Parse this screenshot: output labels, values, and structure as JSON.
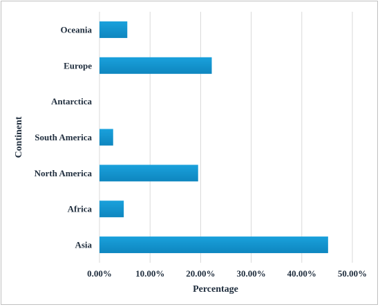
{
  "chart_data": {
    "type": "bar",
    "orientation": "horizontal",
    "categories": [
      "Oceania",
      "Europe",
      "Antarctica",
      "South America",
      "North America",
      "Africa",
      "Asia"
    ],
    "values": [
      5.5,
      22.2,
      0.0,
      2.7,
      19.5,
      4.8,
      45.2
    ],
    "value_unit": "%",
    "xlabel": "Percentage",
    "ylabel": "Continent",
    "xlim": [
      0,
      50
    ],
    "x_ticks": [
      "0.00%",
      "10.00%",
      "20.00%",
      "30.00%",
      "40.00%",
      "50.00%"
    ],
    "grid": "vertical",
    "legend": "none",
    "bar_color": "#1aa1dc",
    "bar_color_dark": "#0e86bf"
  }
}
